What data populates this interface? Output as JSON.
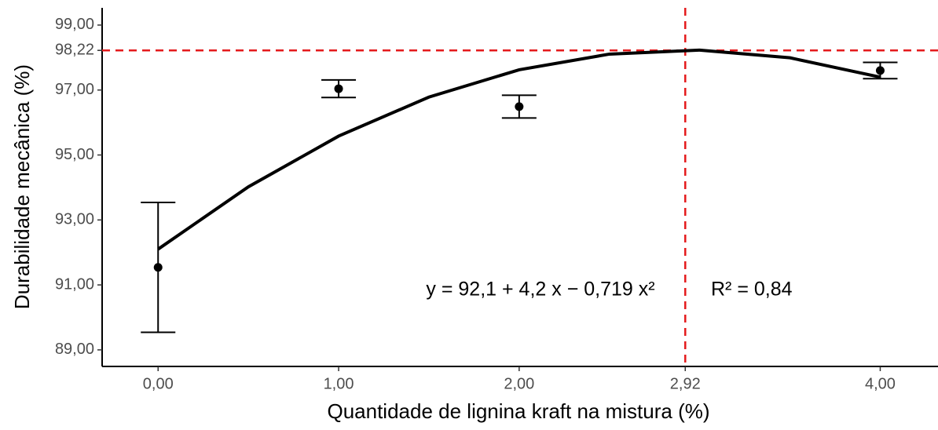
{
  "chart_data": {
    "type": "scatter",
    "x_label": "Quantidade de lignina kraft na mistura (%)",
    "y_label": "Durabilidade mecânica (%)",
    "x": [
      0,
      1,
      2,
      4
    ],
    "values": [
      91.54,
      97.04,
      96.49,
      97.6
    ],
    "errors": [
      2.0,
      0.27,
      0.35,
      0.25
    ],
    "color": "#000000",
    "fit": {
      "x": [
        0,
        0.5,
        1,
        1.5,
        2,
        2.5,
        3,
        3.5,
        4
      ],
      "values": [
        92.1,
        94.02,
        95.581,
        96.782,
        97.624,
        98.106,
        98.229,
        97.992,
        97.396
      ],
      "color": "#000000"
    },
    "reference_lines": {
      "x": 2.92,
      "y": 98.22,
      "color": "#e41a1c"
    },
    "annotations": [
      "y = 92,1 + 4,2 x − 0,719 x²",
      "R² = 0,84"
    ],
    "xlim": [
      -0.31,
      4.32
    ],
    "ylim": [
      88.49,
      99.53
    ],
    "xticks": [
      {
        "value": 0,
        "label": "0,00"
      },
      {
        "value": 1,
        "label": "1,00"
      },
      {
        "value": 2,
        "label": "2,00"
      },
      {
        "value": 2.92,
        "label": "2,92"
      },
      {
        "value": 4,
        "label": "4,00"
      }
    ],
    "yticks": [
      {
        "value": 89,
        "label": "89,00"
      },
      {
        "value": 91,
        "label": "91,00"
      },
      {
        "value": 93,
        "label": "93,00"
      },
      {
        "value": 95,
        "label": "95,00"
      },
      {
        "value": 97,
        "label": "97,00"
      },
      {
        "value": 98.22,
        "label": "98,22"
      },
      {
        "value": 99,
        "label": "99,00"
      }
    ]
  }
}
